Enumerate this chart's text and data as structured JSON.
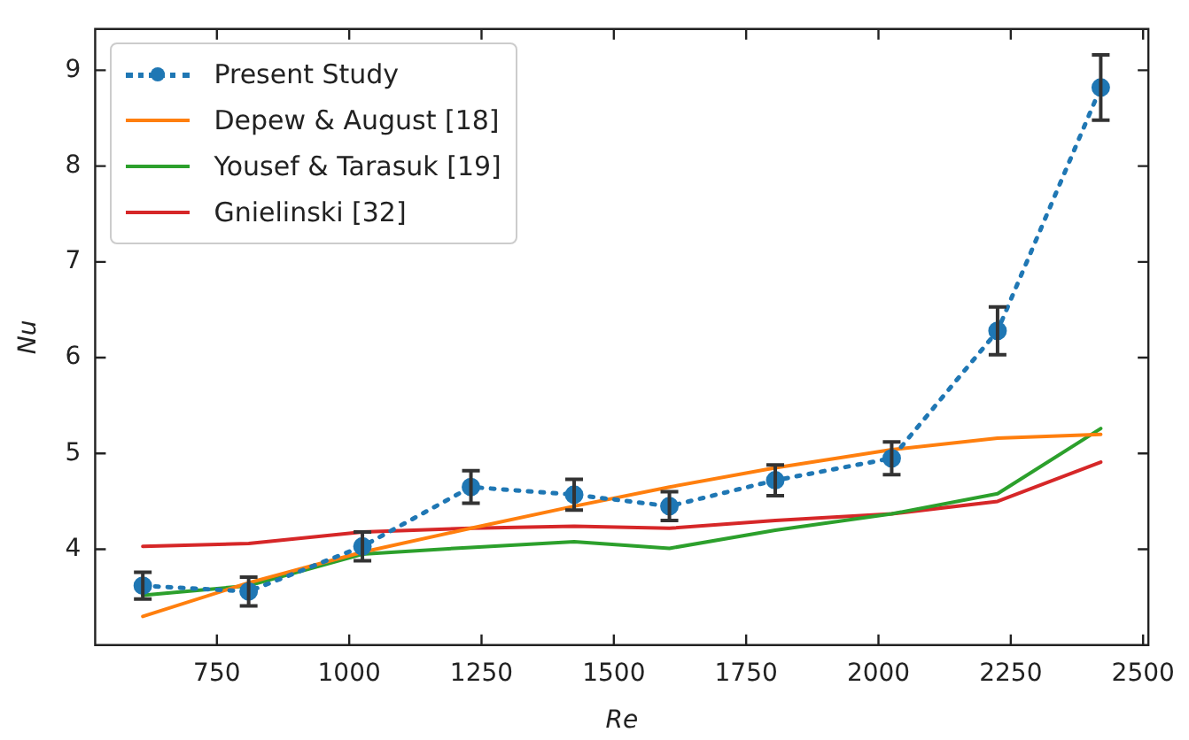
{
  "chart_data": {
    "type": "line",
    "xlabel": "Re",
    "ylabel": "Nu",
    "x": [
      610,
      810,
      1025,
      1230,
      1425,
      1605,
      1805,
      2025,
      2225,
      2420
    ],
    "xlim": [
      520,
      2510
    ],
    "xticks": [
      750,
      1000,
      1250,
      1500,
      1750,
      2000,
      2250,
      2500
    ],
    "ylim": [
      3.0,
      9.43
    ],
    "yticks": [
      4,
      5,
      6,
      7,
      8,
      9
    ],
    "grid": false,
    "legend": "top left",
    "series": [
      {
        "name": "Present Study",
        "color": "#1f77b4",
        "line_style": "dotted",
        "marker": "circle",
        "values": [
          3.62,
          3.56,
          4.03,
          4.65,
          4.57,
          4.45,
          4.72,
          4.95,
          6.28,
          8.82
        ],
        "errors": [
          0.14,
          0.15,
          0.15,
          0.17,
          0.16,
          0.15,
          0.16,
          0.17,
          0.25,
          0.34
        ]
      },
      {
        "name": "Depew & August [18]",
        "color": "#ff7f0e",
        "line_style": "solid",
        "marker": "none",
        "values": [
          3.3,
          3.65,
          3.97,
          4.22,
          4.45,
          4.65,
          4.85,
          5.04,
          5.16,
          5.2
        ]
      },
      {
        "name": "Yousef & Tarasuk [19]",
        "color": "#2ca02c",
        "line_style": "solid",
        "marker": "none",
        "values": [
          3.52,
          3.62,
          3.95,
          4.02,
          4.08,
          4.01,
          4.2,
          4.37,
          4.58,
          5.26
        ]
      },
      {
        "name": "Gnielinski [32]",
        "color": "#d62728",
        "line_style": "solid",
        "marker": "none",
        "values": [
          4.03,
          4.06,
          4.18,
          4.22,
          4.24,
          4.22,
          4.3,
          4.37,
          4.5,
          4.91
        ]
      }
    ]
  }
}
